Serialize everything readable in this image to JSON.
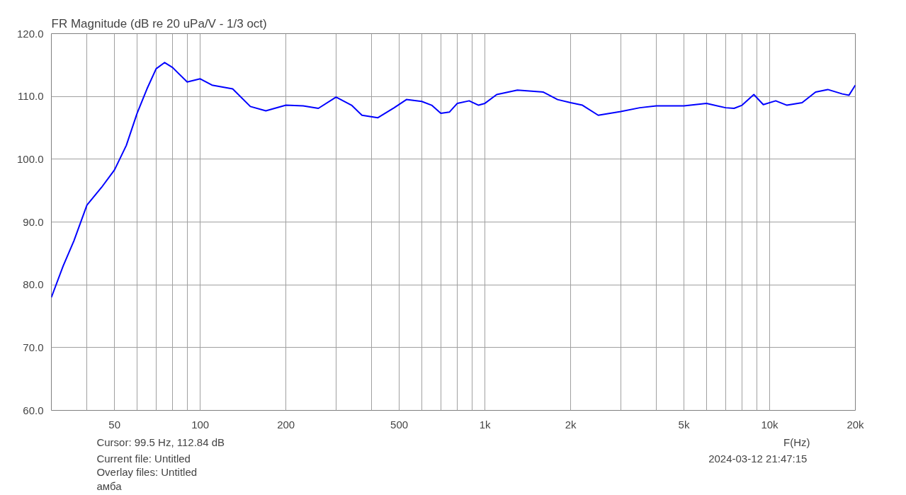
{
  "chart_data": {
    "type": "line",
    "title": "FR Magnitude (dB re 20 uPa/V - 1/3 oct)",
    "xlabel": "F(Hz)",
    "log": "x",
    "grid": true,
    "marker": "none",
    "line_style": "solid",
    "xlim": [
      30,
      20000
    ],
    "ylim": [
      60,
      120
    ],
    "xticks": [
      {
        "value": 30,
        "label": null
      },
      {
        "value": 40,
        "label": null
      },
      {
        "value": 50,
        "label": "50"
      },
      {
        "value": 60,
        "label": null
      },
      {
        "value": 70,
        "label": null
      },
      {
        "value": 80,
        "label": null
      },
      {
        "value": 90,
        "label": null
      },
      {
        "value": 100,
        "label": "100"
      },
      {
        "value": 200,
        "label": "200"
      },
      {
        "value": 300,
        "label": null
      },
      {
        "value": 400,
        "label": null
      },
      {
        "value": 500,
        "label": "500"
      },
      {
        "value": 600,
        "label": null
      },
      {
        "value": 700,
        "label": null
      },
      {
        "value": 800,
        "label": null
      },
      {
        "value": 900,
        "label": null
      },
      {
        "value": 1000,
        "label": "1k"
      },
      {
        "value": 2000,
        "label": "2k"
      },
      {
        "value": 3000,
        "label": null
      },
      {
        "value": 4000,
        "label": null
      },
      {
        "value": 5000,
        "label": "5k"
      },
      {
        "value": 6000,
        "label": null
      },
      {
        "value": 7000,
        "label": null
      },
      {
        "value": 8000,
        "label": null
      },
      {
        "value": 9000,
        "label": null
      },
      {
        "value": 10000,
        "label": "10k"
      },
      {
        "value": 20000,
        "label": "20k"
      }
    ],
    "yticks": [
      {
        "value": 60,
        "label": "60.0"
      },
      {
        "value": 70,
        "label": "70.0"
      },
      {
        "value": 80,
        "label": "80.0"
      },
      {
        "value": 90,
        "label": "90.0"
      },
      {
        "value": 100,
        "label": "100.0"
      },
      {
        "value": 110,
        "label": "110.0"
      },
      {
        "value": 120,
        "label": "120.0"
      }
    ],
    "annotations": [
      "Cursor: 99.5 Hz, 112.84 dB",
      "Current file: Untitled",
      "Overlay files: Untitled",
      "амба",
      "2024-03-12  21:47:15"
    ],
    "series": [
      {
        "color": "#0000ff",
        "x": [
          30,
          33,
          36,
          40,
          45,
          50,
          55,
          60,
          65,
          70,
          75,
          80,
          90,
          100,
          110,
          130,
          150,
          170,
          200,
          230,
          260,
          300,
          340,
          370,
          420,
          480,
          530,
          600,
          650,
          700,
          750,
          800,
          880,
          950,
          1000,
          1100,
          1300,
          1600,
          1800,
          2000,
          2200,
          2500,
          3000,
          3500,
          4000,
          5000,
          6000,
          7000,
          7500,
          8000,
          8800,
          9500,
          10500,
          11500,
          13000,
          14500,
          16000,
          18000,
          19000,
          20000
        ],
        "values": [
          78,
          83,
          87,
          92.7,
          95.5,
          98.3,
          102.2,
          107.3,
          111.2,
          114.4,
          115.4,
          114.6,
          112.3,
          112.8,
          111.8,
          111.2,
          108.4,
          107.7,
          108.6,
          108.5,
          108.1,
          109.9,
          108.6,
          107,
          106.6,
          108.2,
          109.5,
          109.2,
          108.6,
          107.3,
          107.5,
          108.9,
          109.3,
          108.6,
          108.9,
          110.3,
          111,
          110.7,
          109.5,
          109,
          108.6,
          107,
          107.6,
          108.2,
          108.5,
          108.5,
          108.9,
          108.2,
          108.1,
          108.6,
          110.3,
          108.7,
          109.3,
          108.6,
          109,
          110.7,
          111.1,
          110.4,
          110.2,
          111.8
        ]
      }
    ]
  }
}
